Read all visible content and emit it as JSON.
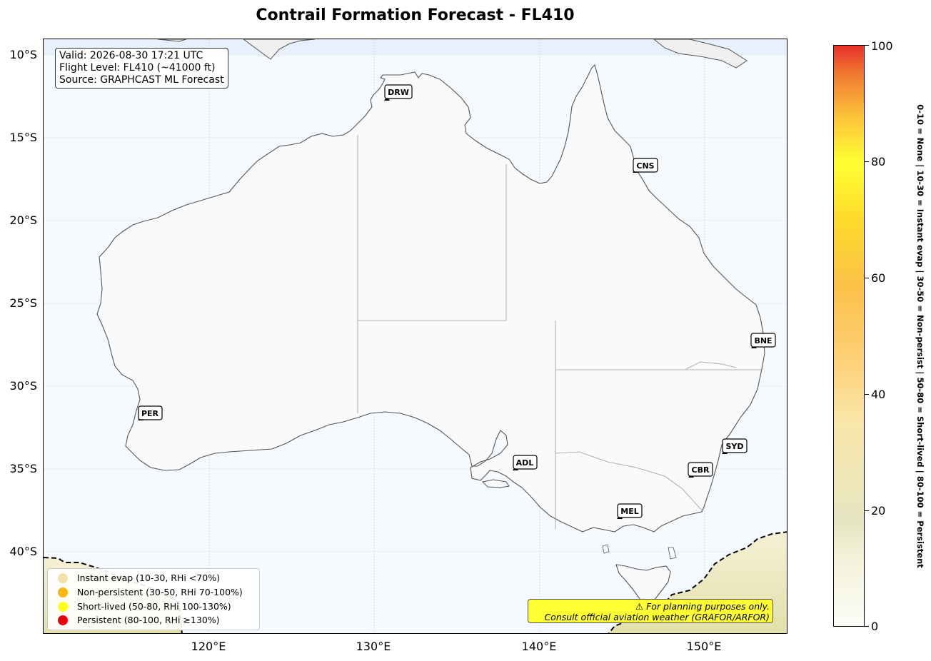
{
  "title": "Contrail Formation Forecast - FL410",
  "info": {
    "valid": "Valid: 2026-08-30 17:21 UTC",
    "flight_level": "Flight Level: FL410 (~41000 ft)",
    "source": "Source: GRAPHCAST ML Forecast"
  },
  "axes": {
    "lat_labels": [
      "10°S",
      "15°S",
      "20°S",
      "25°S",
      "30°S",
      "35°S",
      "40°S"
    ],
    "lon_labels": [
      "120°E",
      "130°E",
      "140°E",
      "150°E"
    ]
  },
  "airports": [
    {
      "code": "DRW",
      "lat": -12.4,
      "lon": 130.9
    },
    {
      "code": "CNS",
      "lat": -16.9,
      "lon": 145.8
    },
    {
      "code": "BNE",
      "lat": -27.4,
      "lon": 153.1
    },
    {
      "code": "PER",
      "lat": -31.9,
      "lon": 116.0
    },
    {
      "code": "ADL",
      "lat": -34.9,
      "lon": 138.5
    },
    {
      "code": "SYD",
      "lat": -33.9,
      "lon": 151.2
    },
    {
      "code": "CBR",
      "lat": -35.3,
      "lon": 149.2
    },
    {
      "code": "MEL",
      "lat": -37.7,
      "lon": 144.8
    }
  ],
  "legend": [
    {
      "label": "Instant evap (10-30, RHi <70%)",
      "color": "#f0e2a8"
    },
    {
      "label": "Non-persistent (30-50, RHi 70-100%)",
      "color": "#fcb714"
    },
    {
      "label": "Short-lived (50-80, RHi 100-130%)",
      "color": "#ffff1a"
    },
    {
      "label": "Persistent (80-100, RHi ≥130%)",
      "color": "#e8000b"
    }
  ],
  "disclaimer": {
    "line1": "⚠ For planning purposes only.",
    "line2": "Consult official aviation weather (GRAFOR/ARFOR)"
  },
  "colorbar": {
    "ticks": [
      "0",
      "20",
      "40",
      "60",
      "80",
      "100"
    ],
    "side_label": "0-10 = None  |  10-30 = Instant evap  |  30-50 = Non-persist  |  50-80 = Short-lived  |  80-100 = Persistent"
  },
  "colors": {
    "ocean": "#f5faff",
    "land": "#fafafa",
    "coast": "#555555",
    "contrail_zone": "#e9e4b8"
  }
}
